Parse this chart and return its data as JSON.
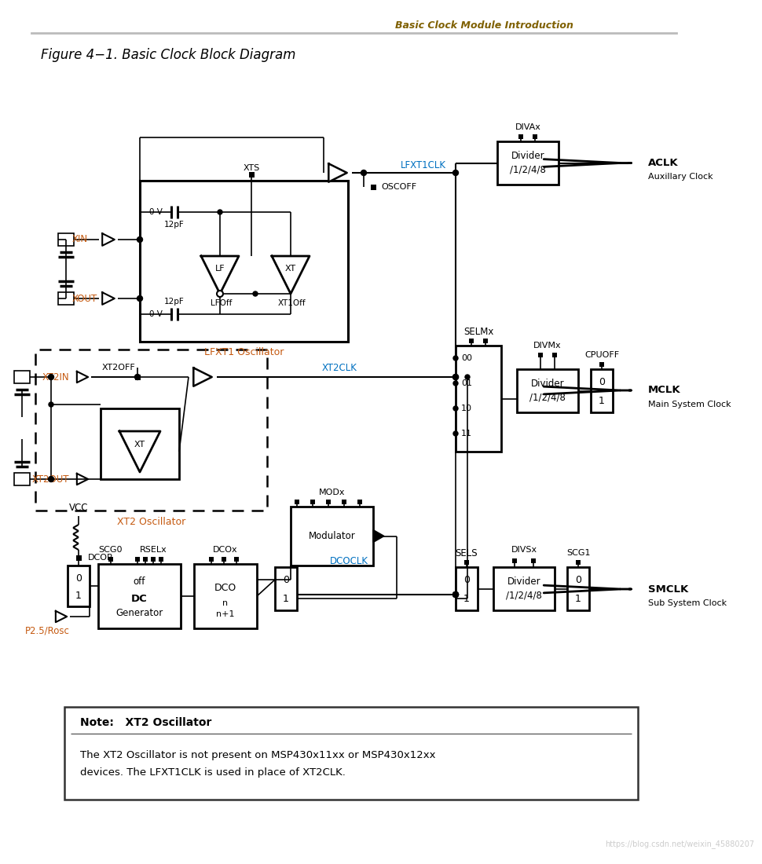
{
  "title": "Figure 4−1. Basic Clock Block Diagram",
  "header": "Basic Clock Module Introduction",
  "watermark": "https://blog.csdn.net/weixin_45880207",
  "blue": "#0070C0",
  "orange": "#C55A11",
  "black": "#000000",
  "gray": "#888888",
  "bg": "#FFFFFF"
}
